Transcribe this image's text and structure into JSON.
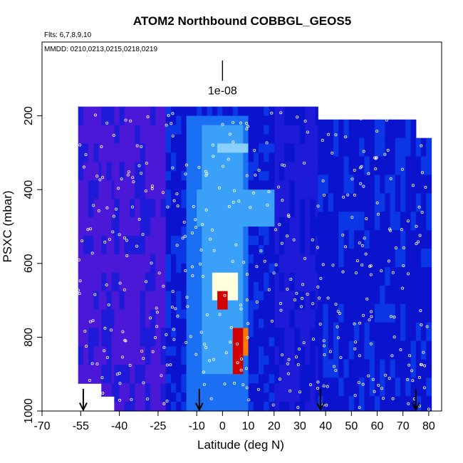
{
  "chart_data": {
    "type": "heatmap",
    "title": "ATOM2 Northbound COBBGL_GEOS5",
    "flights_label": "Flts: 6,7,8,9,10",
    "dates_label": "MMDD: 0210,0213,0215,0218,0219",
    "xlabel": "Latitude (deg N)",
    "ylabel": "PSXC (mbar)",
    "xlim": [
      -70,
      85
    ],
    "ylim": [
      1000,
      0
    ],
    "xticks": [
      -70,
      -55,
      -40,
      -25,
      -10,
      0,
      10,
      20,
      30,
      40,
      50,
      60,
      70,
      80
    ],
    "yticks": [
      200,
      400,
      600,
      800,
      1000
    ],
    "scale_bar": {
      "label": "1e-08",
      "x": 0,
      "y_top": 50,
      "y_bottom": 105
    },
    "arrow_latitudes": [
      -54,
      -9,
      38,
      75
    ],
    "colormap": [
      "#5a23e0",
      "#4a18d6",
      "#1d1bd8",
      "#0b14cc",
      "#0a36e6",
      "#1a6ff2",
      "#3ba0f8",
      "#8ad0ff",
      "#ffffe0",
      "#ffd24a",
      "#ff7a00",
      "#d10000"
    ],
    "pressure_levels": [
      190,
      250,
      300,
      350,
      400,
      450,
      500,
      550,
      600,
      650,
      700,
      750,
      800,
      850,
      900,
      950,
      1000
    ],
    "columns": [
      {
        "lat": [
          -56,
          -47
        ],
        "p_top": 175,
        "p_bot": 925,
        "bg": 1
      },
      {
        "lat": [
          -47,
          -42
        ],
        "p_top": 175,
        "p_bot": 960,
        "bg": 1
      },
      {
        "lat": [
          -42,
          -22
        ],
        "p_top": 175,
        "p_bot": 1000,
        "bg": 1
      },
      {
        "lat": [
          20,
          37
        ],
        "p_top": 175,
        "p_bot": 1000,
        "bg": 2
      },
      {
        "lat": [
          37,
          65
        ],
        "p_top": 210,
        "p_bot": 1000,
        "bg": 3
      },
      {
        "lat": [
          65,
          75
        ],
        "p_top": 210,
        "p_bot": 1000,
        "bg": 3
      },
      {
        "lat": [
          75,
          81
        ],
        "p_top": 260,
        "p_bot": 1000,
        "bg": 3
      }
    ],
    "anomalies": [
      {
        "lat": [
          -15,
          10
        ],
        "p": [
          200,
          1000
        ],
        "level": 5
      },
      {
        "lat": [
          -8,
          8
        ],
        "p": [
          220,
          900
        ],
        "level": 6
      },
      {
        "lat": [
          -5,
          5
        ],
        "p": [
          620,
          700
        ],
        "level": 8
      },
      {
        "lat": [
          -2,
          2
        ],
        "p": [
          660,
          710
        ],
        "level": 11
      },
      {
        "lat": [
          5,
          9
        ],
        "p": [
          770,
          850
        ],
        "level": 10
      },
      {
        "lat": [
          -10,
          20
        ],
        "p": [
          400,
          500
        ],
        "level": 6
      },
      {
        "lat": [
          30,
          35
        ],
        "p": [
          220,
          260
        ],
        "level": 5
      },
      {
        "lat": [
          -3,
          10
        ],
        "p": [
          260,
          300
        ],
        "level": 7
      },
      {
        "lat": [
          4,
          8
        ],
        "p": [
          760,
          900
        ],
        "level": 11
      }
    ]
  }
}
